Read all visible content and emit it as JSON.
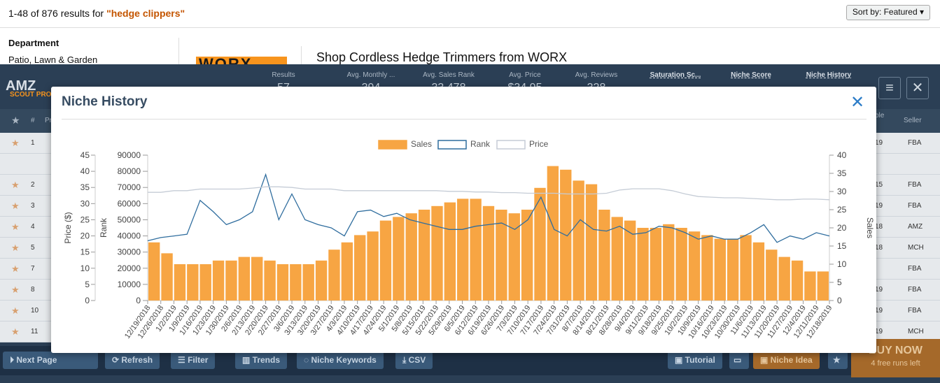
{
  "amazon": {
    "results_prefix": "1-48 of 876 results for ",
    "query": "\"hedge clippers\"",
    "sort_label": "Sort by: Featured ▾",
    "department_heading": "Department",
    "department_value": "Patio, Lawn & Garden",
    "brand_logo_text": "WORX",
    "shop_title": "Shop Cordless Hedge Trimmers from WORX"
  },
  "scout": {
    "logo": "AMZ",
    "logo_sub": "SCOUT PRO",
    "stats": [
      {
        "label": "Results",
        "value": "57"
      },
      {
        "label": "Avg. Monthly ...",
        "value": "394"
      },
      {
        "label": "Avg. Sales Rank",
        "value": "33,478"
      },
      {
        "label": "Avg. Price",
        "value": "$34.95"
      },
      {
        "label": "Avg. Reviews",
        "value": "328"
      }
    ],
    "stat_links": [
      {
        "label": "Saturation Sc..."
      },
      {
        "label": "Niche Score"
      },
      {
        "label": "Niche History"
      }
    ],
    "table_headers": {
      "hash": "#",
      "product": "Pr",
      "seller": "Seller",
      "right_partial": "ble"
    },
    "rows": [
      {
        "num": "1",
        "seller": "FBA",
        "date": "19"
      },
      {
        "num": "2",
        "seller": "FBA",
        "date": "15"
      },
      {
        "num": "3",
        "seller": "FBA",
        "date": "19"
      },
      {
        "num": "4",
        "seller": "AMZ",
        "date": "18"
      },
      {
        "num": "5",
        "seller": "MCH",
        "date": "18"
      },
      {
        "num": "7",
        "seller": "FBA",
        "date": ""
      },
      {
        "num": "8",
        "seller": "FBA",
        "date": "19"
      },
      {
        "num": "10",
        "seller": "FBA",
        "date": "19"
      },
      {
        "num": "11",
        "seller": "MCH",
        "date": "19"
      }
    ],
    "buttons": {
      "next_page": "Next Page",
      "refresh": "Refresh",
      "filter": "Filter",
      "trends": "Trends",
      "niche_keywords": "Niche Keywords",
      "csv": "CSV",
      "tutorial": "Tutorial",
      "niche_idea": "Niche Idea",
      "buy_now": "BUY NOW",
      "free_runs": "4 free runs left"
    }
  },
  "modal": {
    "title": "Niche History",
    "close_icon": "close-icon"
  },
  "chart_data": {
    "type": "bar+line",
    "legend": [
      "Sales",
      "Rank",
      "Price"
    ],
    "legend_position": "top-center",
    "colors": {
      "sales": "#f7a543",
      "rank": "#2f6d9e",
      "price": "#c5ccd6"
    },
    "left_price_axis": {
      "label": "Price ($)",
      "ticks": [
        0,
        5,
        10,
        15,
        20,
        25,
        30,
        35,
        40,
        45
      ],
      "range": [
        0,
        45
      ]
    },
    "left_rank_axis": {
      "label": "Rank",
      "ticks": [
        0,
        10000,
        20000,
        30000,
        40000,
        50000,
        60000,
        70000,
        80000,
        90000
      ],
      "range": [
        0,
        90000
      ]
    },
    "right_sales_axis": {
      "label": "Sales",
      "ticks": [
        0,
        5,
        10,
        15,
        20,
        25,
        30,
        35,
        40
      ],
      "range": [
        0,
        40
      ]
    },
    "x_ticks": [
      "12/19/2018",
      "12/26/2018",
      "1/2/2019",
      "1/9/2019",
      "1/16/2019",
      "1/23/2019",
      "1/30/2019",
      "2/6/2019",
      "2/13/2019",
      "2/20/2019",
      "2/27/2019",
      "3/6/2019",
      "3/13/2019",
      "3/20/2019",
      "3/27/2019",
      "4/3/2019",
      "4/10/2019",
      "4/17/2019",
      "4/24/2019",
      "5/1/2019",
      "5/8/2019",
      "5/15/2019",
      "5/22/2019",
      "5/29/2019",
      "6/5/2019",
      "6/12/2019",
      "6/19/2019",
      "6/26/2019",
      "7/3/2019",
      "7/10/2019",
      "7/17/2019",
      "7/24/2019",
      "7/31/2019",
      "8/7/2019",
      "8/14/2019",
      "8/21/2019",
      "8/28/2019",
      "9/4/2019",
      "9/11/2019",
      "9/18/2019",
      "9/25/2019",
      "10/2/2019",
      "10/9/2019",
      "10/16/2019",
      "10/23/2019",
      "10/30/2019",
      "11/6/2019",
      "11/13/2019",
      "11/20/2019",
      "11/27/2019",
      "12/4/2019",
      "12/11/2019",
      "12/18/2019"
    ],
    "sales_weekly": [
      16,
      13,
      10,
      10,
      10,
      11,
      11,
      12,
      12,
      11,
      10,
      10,
      10,
      11,
      14,
      16,
      18,
      19,
      22,
      23,
      24,
      25,
      26,
      27,
      28,
      28,
      26,
      25,
      24,
      25,
      31,
      37,
      36,
      33,
      32,
      25,
      23,
      22,
      20,
      20,
      21,
      20,
      19,
      18,
      17,
      17,
      18,
      16,
      14,
      12,
      11,
      8,
      8
    ],
    "rank_weekly": [
      37000,
      39000,
      40000,
      41000,
      62000,
      55000,
      47000,
      50000,
      55000,
      78000,
      50000,
      66000,
      50000,
      47000,
      45000,
      40000,
      55000,
      56000,
      52000,
      54000,
      50000,
      48000,
      46000,
      44000,
      44000,
      46000,
      47000,
      48000,
      44000,
      50000,
      64000,
      44000,
      40000,
      50000,
      44000,
      43000,
      46000,
      41000,
      42000,
      46000,
      45000,
      42000,
      38000,
      40000,
      38000,
      38000,
      42000,
      47000,
      36000,
      40000,
      38000,
      42000,
      40000
    ],
    "price_weekly": [
      33.5,
      33.5,
      34,
      34,
      34.5,
      34.5,
      34.5,
      34.5,
      34.8,
      35.2,
      35.2,
      35,
      34.5,
      34.5,
      34.5,
      34,
      34,
      34,
      34,
      34,
      34,
      34,
      34,
      33.8,
      33.8,
      33.6,
      33.6,
      33.4,
      33.4,
      33.2,
      33.2,
      33.2,
      33,
      33,
      33,
      33.2,
      34.2,
      34.6,
      34.6,
      34.6,
      34,
      33,
      32.2,
      32,
      31.8,
      31.8,
      31.6,
      31.4,
      31.2,
      31.2,
      31.4,
      31.4,
      31.2
    ]
  }
}
